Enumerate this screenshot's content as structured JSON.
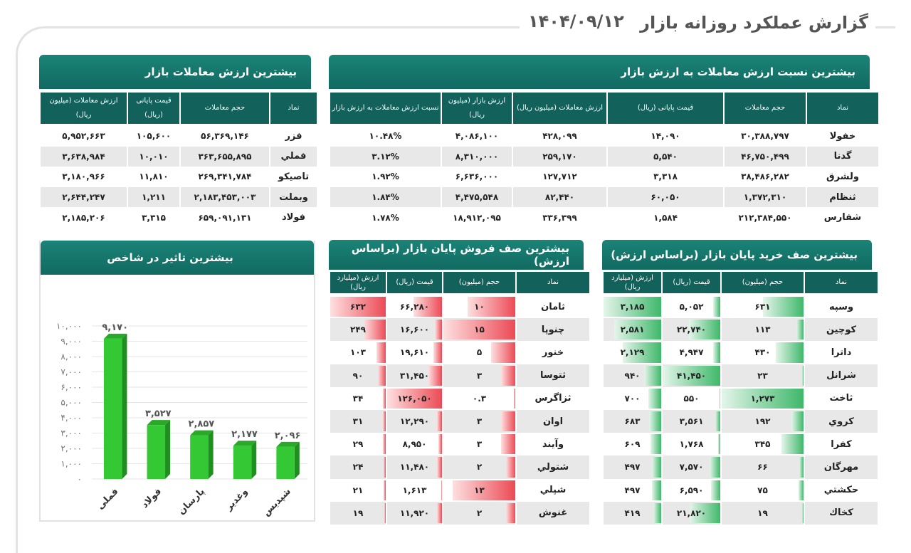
{
  "header": {
    "title": "گزارش عملکرد روزانه بازار",
    "date": "۱۴۰۴/۰۹/۱۲"
  },
  "top_value": {
    "title": "بیشترین ارزش معاملات بازار",
    "columns": [
      "نماد",
      "حجم معاملات",
      "قیمت پایانی (ریال)",
      "ارزش معاملات (میلیون ریال)"
    ],
    "rows": [
      [
        "فزر",
        "۵۶,۳۶۹,۱۴۶",
        "۱۰۵,۶۰۰",
        "۵,۹۵۲,۶۶۳"
      ],
      [
        "فملي",
        "۳۶۳,۶۵۵,۸۹۵",
        "۱۰,۰۱۰",
        "۳,۶۳۸,۹۸۴"
      ],
      [
        "تاصيكو",
        "۲۶۹,۳۴۱,۷۸۴",
        "۱۱,۸۱۰",
        "۳,۱۸۰,۹۶۶"
      ],
      [
        "وبملت",
        "۲,۱۸۳,۴۵۳,۰۰۳",
        "۱,۲۱۱",
        "۲,۶۴۴,۲۴۷"
      ],
      [
        "فولاد",
        "۶۵۹,۰۹۱,۱۳۱",
        "۳,۳۱۵",
        "۲,۱۸۵,۲۰۶"
      ]
    ]
  },
  "top_ratio": {
    "title": "بیشترین نسبت ارزش معاملات به ارزش بازار",
    "columns": [
      "نماد",
      "حجم معاملات",
      "قیمت پایانی (ریال)",
      "ارزش معاملات (میلیون ریال)",
      "ارزش بازار (میلیون ریال)",
      "نسبت ارزش معاملات به ارزش بازار"
    ],
    "rows": [
      [
        "خفولا",
        "۳۰,۳۸۸,۷۹۷",
        "۱۴,۰۹۰",
        "۴۲۸,۰۹۹",
        "۴,۰۸۶,۱۰۰",
        "۱۰.۴۸%"
      ],
      [
        "گدنا",
        "۴۶,۷۵۰,۴۹۹",
        "۵,۵۴۰",
        "۲۵۹,۱۷۰",
        "۸,۳۱۰,۰۰۰",
        "۳.۱۲%"
      ],
      [
        "ولشرق",
        "۳۸,۴۸۶,۲۸۲",
        "۳,۳۱۸",
        "۱۲۷,۷۱۲",
        "۶,۶۳۶,۰۰۰",
        "۱.۹۲%"
      ],
      [
        "ثنظام",
        "۱,۳۷۲,۳۱۰",
        "۶۰,۰۵۰",
        "۸۲,۴۴۰",
        "۴,۴۷۵,۵۴۸",
        "۱.۸۴%"
      ],
      [
        "شفارس",
        "۲۱۲,۳۸۴,۵۵۰",
        "۱,۵۸۴",
        "۳۳۶,۳۹۹",
        "۱۸,۹۱۲,۰۹۵",
        "۱.۷۸%"
      ]
    ]
  },
  "sell_queue": {
    "title": "بیشترین صف فروش پایان بازار (براساس ارزش)",
    "columns": [
      "نماد",
      "حجم (میلیون)",
      "قیمت (ریال)",
      "ارزش (میلیارد ریال)"
    ],
    "bar_color": "#ec4a55",
    "rows": [
      [
        "ثامان",
        "۱۰",
        "۶۶,۲۸۰",
        "۶۳۲"
      ],
      [
        "چنوپا",
        "۱۵",
        "۱۶,۶۰۰",
        "۲۴۹"
      ],
      [
        "خنور",
        "۵",
        "۱۹,۶۱۰",
        "۱۰۳"
      ],
      [
        "ثتوسا",
        "۳",
        "۳۱,۴۵۰",
        "۹۰"
      ],
      [
        "ثزاگرس",
        "۰.۳",
        "۱۲۶,۰۵۰",
        "۳۴"
      ],
      [
        "اوان",
        "۳",
        "۱۲,۲۹۰",
        "۳۱"
      ],
      [
        "وآیند",
        "۳",
        "۸,۹۵۰",
        "۲۹"
      ],
      [
        "شتولي",
        "۲",
        "۱۱,۴۸۰",
        "۲۴"
      ],
      [
        "شپلي",
        "۱۳",
        "۱,۶۱۳",
        "۲۱"
      ],
      [
        "غنوش",
        "۲",
        "۱۱,۹۲۰",
        "۱۹"
      ]
    ]
  },
  "buy_queue": {
    "title": "بیشترین صف خرید پایان بازار (براساس ارزش)",
    "columns": [
      "نماد",
      "حجم (میلیون)",
      "قیمت (ریال)",
      "ارزش (میلیارد ریال)"
    ],
    "bar_color": "#3fb86a",
    "rows": [
      [
        "وسپه",
        "۶۳۱",
        "۵,۰۵۲",
        "۳,۱۸۵"
      ],
      [
        "كوچين",
        "۱۱۳",
        "۲۲,۷۴۰",
        "۲,۵۸۱"
      ],
      [
        "داترا",
        "۴۳۰",
        "۴,۹۴۷",
        "۲,۱۲۹"
      ],
      [
        "شرانل",
        "۲۳",
        "۴۱,۴۵۰",
        "۹۴۰"
      ],
      [
        "ثاخت",
        "۱,۲۷۳",
        "۵۵۰",
        "۷۰۰"
      ],
      [
        "كروي",
        "۱۹۲",
        "۳,۵۶۱",
        "۶۸۳"
      ],
      [
        "كفرا",
        "۳۴۵",
        "۱,۷۶۸",
        "۶۰۹"
      ],
      [
        "مهرگان",
        "۶۶",
        "۷,۵۷۰",
        "۴۹۷"
      ],
      [
        "حكشتي",
        "۷۵",
        "۶,۵۹۰",
        "۴۹۷"
      ],
      [
        "كخاك",
        "۱۹",
        "۲۱,۸۲۰",
        "۴۱۹"
      ]
    ]
  },
  "chart_data": {
    "type": "bar",
    "title": "بیشترین تاثیر در شاخص",
    "categories": [
      "فملی",
      "فولاد",
      "پارسان",
      "وغدیر",
      "شپدیس"
    ],
    "values": [
      9170,
      3527,
      2857,
      2177,
      2096
    ],
    "value_labels": [
      "۹,۱۷۰",
      "۳,۵۲۷",
      "۲,۸۵۷",
      "۲,۱۷۷",
      "۲,۰۹۶"
    ],
    "ylim": [
      0,
      10000
    ],
    "yticks": [
      "۰",
      "۱,۰۰۰",
      "۲,۰۰۰",
      "۳,۰۰۰",
      "۴,۰۰۰",
      "۵,۰۰۰",
      "۶,۰۰۰",
      "۷,۰۰۰",
      "۸,۰۰۰",
      "۹,۰۰۰",
      "۱۰,۰۰۰"
    ],
    "grid": true,
    "bar_color": "#34c934"
  }
}
